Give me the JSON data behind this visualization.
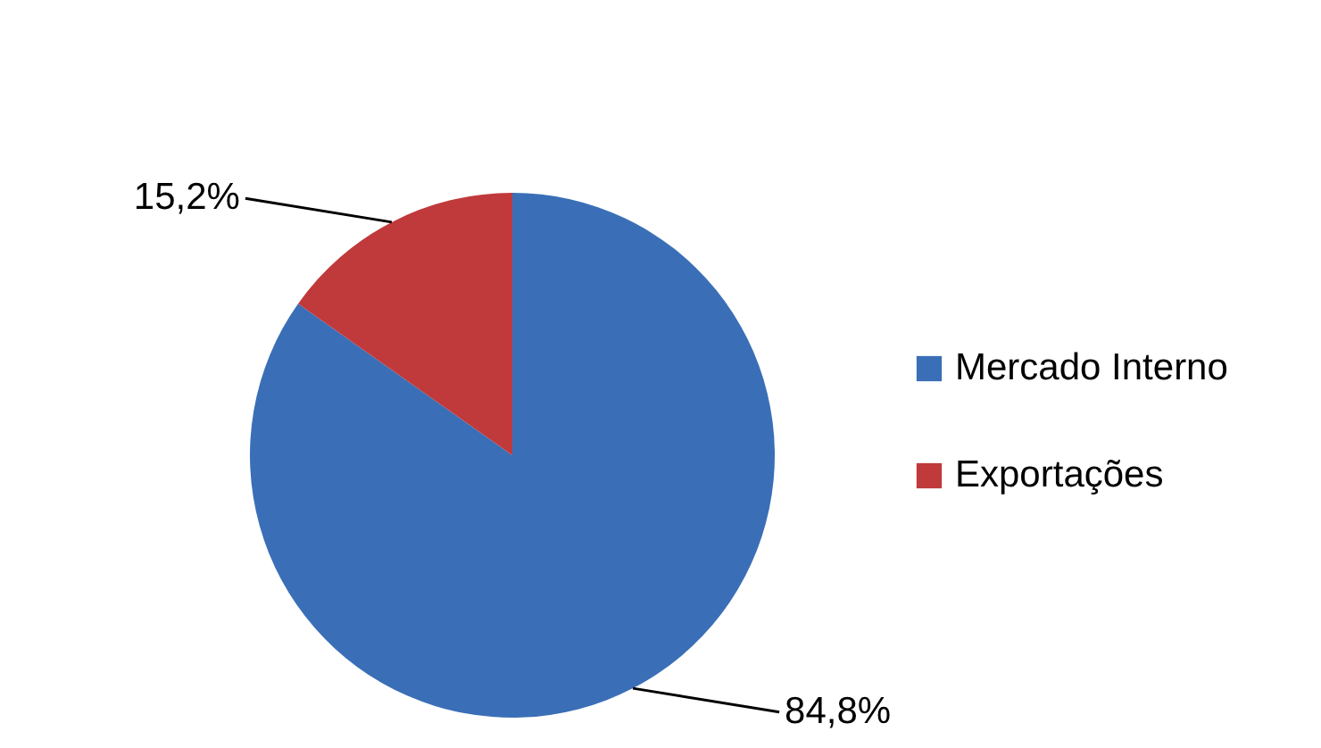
{
  "chart_data": {
    "type": "pie",
    "categories": [
      "Mercado Interno",
      "Exportações"
    ],
    "values": [
      84.8,
      15.2
    ],
    "colors": [
      "#3a6fb7",
      "#c0393b"
    ],
    "value_labels": [
      "84,8%",
      "15,2%"
    ],
    "legend": "right"
  }
}
